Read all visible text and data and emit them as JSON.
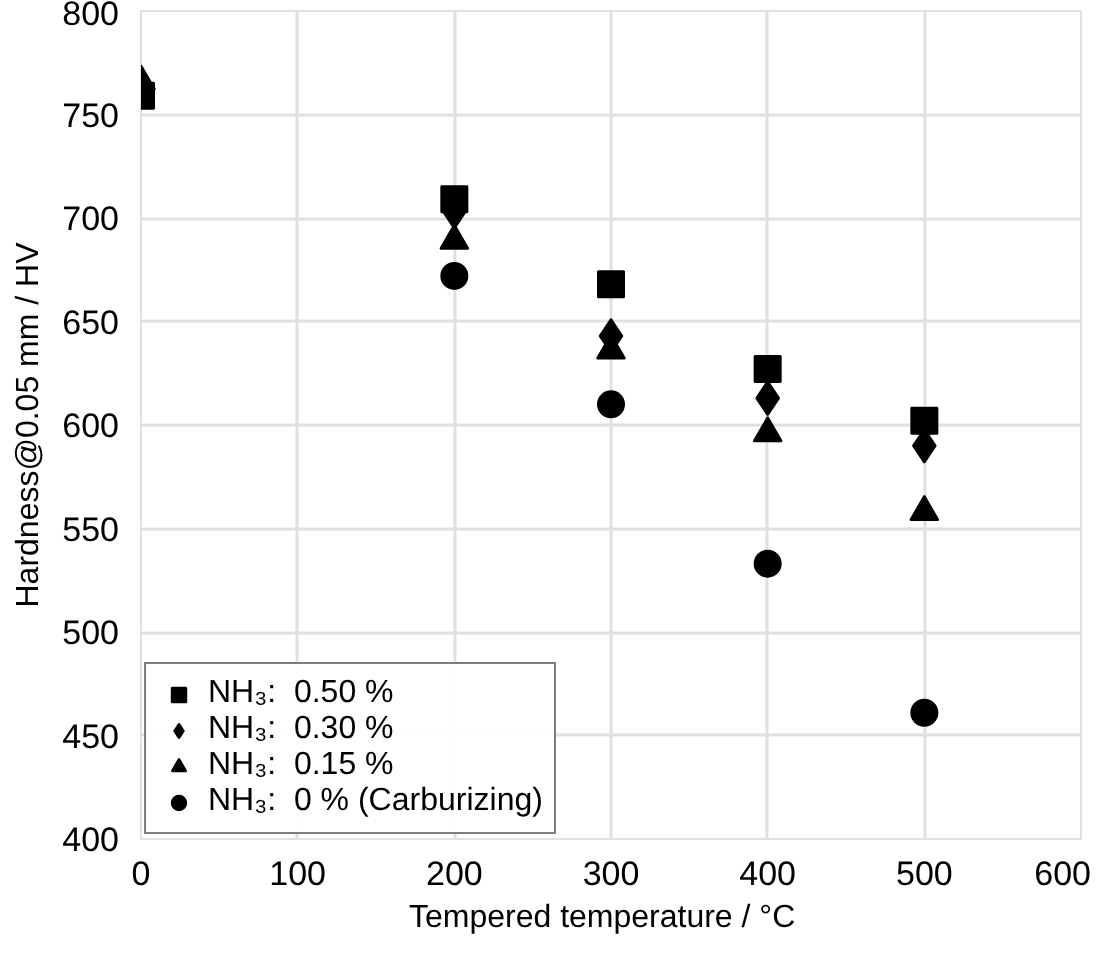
{
  "chart_data": {
    "type": "scatter",
    "xlabel": "Tempered temperature  /  °C",
    "ylabel": "Hardness@0.05 mm / HV",
    "x": [
      0,
      200,
      300,
      400,
      500
    ],
    "xlim": [
      0,
      600
    ],
    "xticks": [
      0,
      100,
      200,
      300,
      400,
      500,
      600
    ],
    "ylim": [
      400,
      800
    ],
    "yticks": [
      400,
      450,
      500,
      550,
      600,
      650,
      700,
      750,
      800
    ],
    "grid": true,
    "legend": "bottom left",
    "series": [
      {
        "name": "NH₃:  0.50 %",
        "color": "#000000",
        "marker": "square",
        "values": [
          759,
          709,
          668,
          627,
          602
        ]
      },
      {
        "name": "NH₃:  0.30 %",
        "color": "#000000",
        "marker": "diamond",
        "values": [
          null,
          703,
          643,
          613,
          590
        ]
      },
      {
        "name": "NH₃:  0.15 %",
        "color": "#000000",
        "marker": "triangle",
        "values": [
          766,
          689,
          636,
          596,
          558
        ]
      },
      {
        "name": "NH₃:  0 % (Carburizing)",
        "color": "#000000",
        "marker": "circle",
        "values": [
          null,
          672,
          610,
          533,
          461
        ]
      }
    ]
  }
}
